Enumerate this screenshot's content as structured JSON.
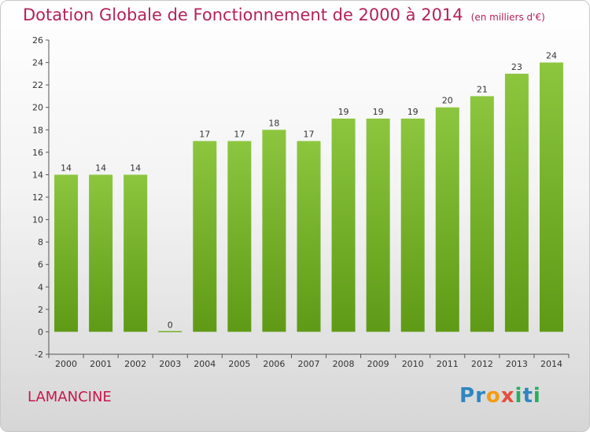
{
  "chart_data": {
    "type": "bar",
    "title": "Dotation Globale de Fonctionnement de 2000 à 2014",
    "subtitle": "(en milliers d'€)",
    "categories": [
      "2000",
      "2001",
      "2002",
      "2003",
      "2004",
      "2005",
      "2006",
      "2007",
      "2008",
      "2009",
      "2010",
      "2011",
      "2012",
      "2013",
      "2014"
    ],
    "values": [
      14,
      14,
      14,
      0,
      17,
      17,
      18,
      17,
      19,
      19,
      19,
      20,
      21,
      23,
      24
    ],
    "ylim": [
      -2,
      26
    ],
    "yticks": [
      -2,
      0,
      2,
      4,
      6,
      8,
      10,
      12,
      14,
      16,
      18,
      20,
      22,
      24,
      26
    ],
    "xlabel": "",
    "ylabel": "",
    "grid": false,
    "bar_color": "#8cc63f",
    "bar_color_dark": "#5f9a16"
  },
  "footer": {
    "commune": "LAMANCINE",
    "brand": "Proxiti",
    "brand_letters": [
      {
        "ch": "P",
        "color": "#2e86c1"
      },
      {
        "ch": "r",
        "color": "#2e86c1"
      },
      {
        "ch": "o",
        "color": "#f39c12"
      },
      {
        "ch": "x",
        "color": "#e74c3c"
      },
      {
        "ch": "i",
        "color": "#27ae60"
      },
      {
        "ch": "t",
        "color": "#2e86c1"
      },
      {
        "ch": "i",
        "color": "#27ae60"
      }
    ]
  },
  "colors": {
    "title": "#b5215a",
    "commune": "#c8174d",
    "axis": "#555555"
  }
}
